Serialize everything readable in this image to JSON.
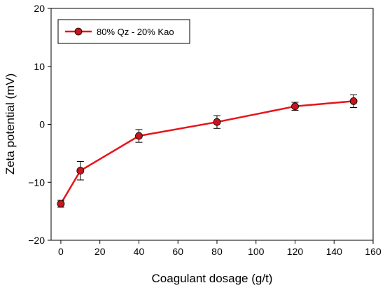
{
  "chart_data": {
    "type": "line",
    "xlabel": "Coagulant dosage (g/t)",
    "ylabel": "Zeta potential (mV)",
    "xlim": [
      -5,
      160
    ],
    "ylim": [
      -20,
      20
    ],
    "x_ticks": [
      0,
      20,
      40,
      60,
      80,
      100,
      120,
      140,
      160
    ],
    "y_ticks": [
      -20,
      -10,
      0,
      10,
      20
    ],
    "x_tick_labels": [
      "0",
      "20",
      "40",
      "60",
      "80",
      "100",
      "120",
      "140",
      "160"
    ],
    "y_tick_labels": [
      "−20",
      "−10",
      "0",
      "10",
      "20"
    ],
    "grid": false,
    "legend_position": "top-left",
    "series": [
      {
        "name": "80% Qz - 20% Kao",
        "color": "#e8141b",
        "marker_color": "#c8141b",
        "x": [
          0,
          10,
          40,
          80,
          120,
          150
        ],
        "y": [
          -13.7,
          -8.0,
          -2.0,
          0.4,
          3.1,
          4.0
        ],
        "error": [
          0.6,
          1.6,
          1.1,
          1.1,
          0.7,
          1.1
        ]
      }
    ]
  }
}
